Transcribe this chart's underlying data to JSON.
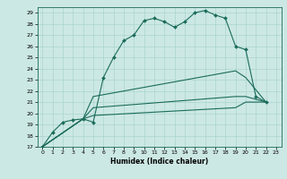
{
  "xlabel": "Humidex (Indice chaleur)",
  "bg_color": "#cce8e4",
  "grid_color": "#aad4ce",
  "line_color": "#1a6b5a",
  "xlim": [
    -0.5,
    23.5
  ],
  "ylim": [
    17,
    29.5
  ],
  "xticks": [
    0,
    1,
    2,
    3,
    4,
    5,
    6,
    7,
    8,
    9,
    10,
    11,
    12,
    13,
    14,
    15,
    16,
    17,
    18,
    19,
    20,
    21,
    22,
    23
  ],
  "yticks": [
    17,
    18,
    19,
    20,
    21,
    22,
    23,
    24,
    25,
    26,
    27,
    28,
    29
  ],
  "lines": [
    {
      "x": [
        0,
        1,
        2,
        3,
        4,
        5,
        6,
        7,
        8,
        9,
        10,
        11,
        12,
        13,
        14,
        15,
        16,
        17,
        18,
        19,
        20,
        21,
        22
      ],
      "y": [
        17,
        18.3,
        19.2,
        19.4,
        19.5,
        19.2,
        23.2,
        25.0,
        26.5,
        27.0,
        28.3,
        28.5,
        28.2,
        27.7,
        28.2,
        29.0,
        29.2,
        28.8,
        28.5,
        26.0,
        25.7,
        21.5,
        21.0
      ],
      "marker": "D",
      "markersize": 2.0,
      "linewidth": 0.8
    },
    {
      "x": [
        0,
        4,
        5,
        19,
        20,
        22
      ],
      "y": [
        17,
        19.5,
        21.5,
        23.8,
        23.2,
        21.0
      ],
      "marker": null,
      "linewidth": 0.8
    },
    {
      "x": [
        0,
        4,
        5,
        19,
        20,
        22
      ],
      "y": [
        17,
        19.5,
        20.5,
        21.5,
        21.5,
        21.0
      ],
      "marker": null,
      "linewidth": 0.8
    },
    {
      "x": [
        0,
        4,
        5,
        19,
        20,
        22
      ],
      "y": [
        17,
        19.5,
        19.8,
        20.5,
        21.0,
        21.0
      ],
      "marker": null,
      "linewidth": 0.8
    }
  ]
}
